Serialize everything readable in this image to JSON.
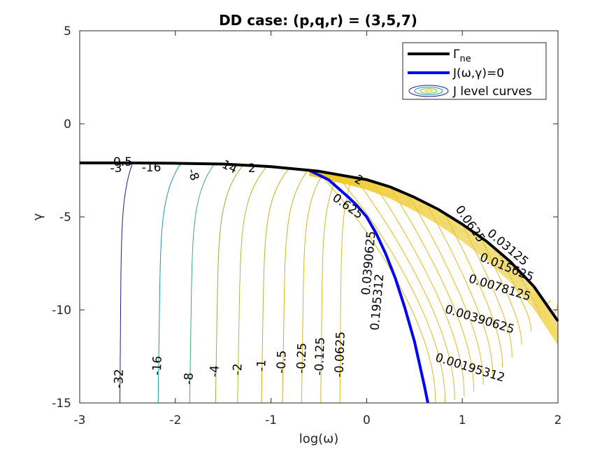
{
  "chart_data": {
    "type": "contour",
    "title": "DD case: (p,q,r) = (3,5,7)",
    "xlabel": "log(ω)",
    "ylabel": "γ",
    "xlim": [
      -3,
      2
    ],
    "ylim": [
      -15,
      5
    ],
    "xticks": [
      -3,
      -2,
      -1,
      0,
      1,
      2
    ],
    "yticks": [
      -15,
      -10,
      -5,
      0,
      5
    ],
    "xtick_labels": [
      "-3",
      "-2",
      "-1",
      "0",
      "1",
      "2"
    ],
    "ytick_labels": [
      "-15",
      "-10",
      "-5",
      "0",
      "5"
    ],
    "legend": {
      "location": "top-right",
      "entries": [
        {
          "label": "Γ",
          "subscript": "ne",
          "style": "thick-black-line",
          "color": "#000000"
        },
        {
          "label": "J(ω,γ)=0",
          "style": "thick-blue-line",
          "color": "#0000ff"
        },
        {
          "label": "J level curves",
          "style": "contour-ellipses",
          "color": "#e0c020"
        }
      ]
    },
    "gamma_ne": {
      "name": "Γne",
      "color": "#000000",
      "x": [
        -3,
        -2.5,
        -2,
        -1.5,
        -1,
        -0.5,
        0,
        0.25,
        0.5,
        0.75,
        1,
        1.25,
        1.5,
        1.75,
        2
      ],
      "y": [
        -2.1,
        -2.1,
        -2.12,
        -2.16,
        -2.3,
        -2.55,
        -3.0,
        -3.4,
        -3.95,
        -4.6,
        -5.4,
        -6.3,
        -7.4,
        -8.75,
        -10.6
      ]
    },
    "zero_curve": {
      "name": "J(ω,γ)=0",
      "color": "#0000ff",
      "x": [
        -0.6,
        -0.4,
        -0.2,
        -0.1,
        0.0,
        0.1,
        0.2,
        0.3,
        0.4,
        0.5,
        0.6,
        0.64
      ],
      "y": [
        -2.5,
        -3.0,
        -3.9,
        -4.4,
        -5.0,
        -5.9,
        -7.0,
        -8.3,
        -9.9,
        -11.7,
        -14.0,
        -15.0
      ]
    },
    "negative_levels": [
      {
        "level": -32,
        "label": "-32",
        "color": "#231a8c",
        "x_bottom": -2.58,
        "x_top": -2.45,
        "label_x": -2.55,
        "label_y": -13.7
      },
      {
        "level": -16,
        "label": "-16",
        "color": "#1a9aa8",
        "x_bottom": -2.18,
        "x_top": -1.95,
        "label_x": -2.15,
        "label_y": -13.0
      },
      {
        "level": -8,
        "label": "-8",
        "color": "#3cb06a",
        "x_bottom": -1.85,
        "x_top": -1.6,
        "label_x": -1.82,
        "label_y": -13.7
      },
      {
        "level": -4,
        "label": "-4",
        "color": "#8ab83a",
        "x_bottom": -1.58,
        "x_top": -1.3,
        "label_x": -1.55,
        "label_y": -13.3
      },
      {
        "level": -2,
        "label": "-2",
        "color": "#b8b828",
        "x_bottom": -1.35,
        "x_top": -1.05,
        "label_x": -1.31,
        "label_y": -13.2
      },
      {
        "level": -1,
        "label": "-1",
        "color": "#c8b020",
        "x_bottom": -1.1,
        "x_top": -0.82,
        "label_x": -1.06,
        "label_y": -13.0
      },
      {
        "level": -0.5,
        "label": "-0.5",
        "color": "#d0b020",
        "x_bottom": -0.88,
        "x_top": -0.62,
        "label_x": -0.85,
        "label_y": -12.8
      },
      {
        "level": -0.25,
        "label": "-0.25",
        "color": "#d8b420",
        "x_bottom": -0.68,
        "x_top": -0.45,
        "label_x": -0.64,
        "label_y": -12.6
      },
      {
        "level": -0.125,
        "label": "-0.125",
        "color": "#dcb420",
        "x_bottom": -0.48,
        "x_top": -0.3,
        "label_x": -0.45,
        "label_y": -12.5
      },
      {
        "level": -0.0625,
        "label": "-0.0625",
        "color": "#e0b820",
        "x_bottom": -0.28,
        "x_top": -0.15,
        "label_x": -0.24,
        "label_y": -12.4
      }
    ],
    "positive_labels": [
      {
        "label": "0.0078125",
        "x": 1.38,
        "y": -9.0,
        "angle": 17
      },
      {
        "label": "0.00390625",
        "x": 1.17,
        "y": -10.7,
        "angle": 17
      },
      {
        "label": "0.00195312",
        "x": 1.07,
        "y": -13.3,
        "angle": 17
      },
      {
        "label": "0.015625",
        "x": 1.45,
        "y": -7.9,
        "angle": 22
      },
      {
        "label": "0.03125",
        "x": 1.45,
        "y": -6.8,
        "angle": 40
      },
      {
        "label": "0.0625",
        "x": 1.05,
        "y": -5.5,
        "angle": 55
      },
      {
        "label": "2",
        "x": -0.1,
        "y": -3.2,
        "angle": 30
      },
      {
        "label": "14",
        "x": -1.45,
        "y": -2.5,
        "angle": 25
      },
      {
        "label": "0.195312",
        "x": 0.15,
        "y": -9.6,
        "angle": -85
      },
      {
        "label": "0.0390625",
        "x": 0.06,
        "y": -7.5,
        "angle": -85
      },
      {
        "label": "0.625",
        "x": -0.22,
        "y": -4.6,
        "angle": 35
      },
      {
        "label": "-3",
        "x": -2.62,
        "y": -2.6,
        "angle": 0
      },
      {
        "label": "-16",
        "x": -2.25,
        "y": -2.55,
        "angle": 0
      },
      {
        "label": "0.5",
        "x": -2.55,
        "y": -2.25,
        "angle": 0
      },
      {
        "label": "-8",
        "x": -1.85,
        "y": -2.8,
        "angle": 70
      },
      {
        "label": "2",
        "x": -1.2,
        "y": -2.6,
        "angle": 0
      }
    ]
  }
}
